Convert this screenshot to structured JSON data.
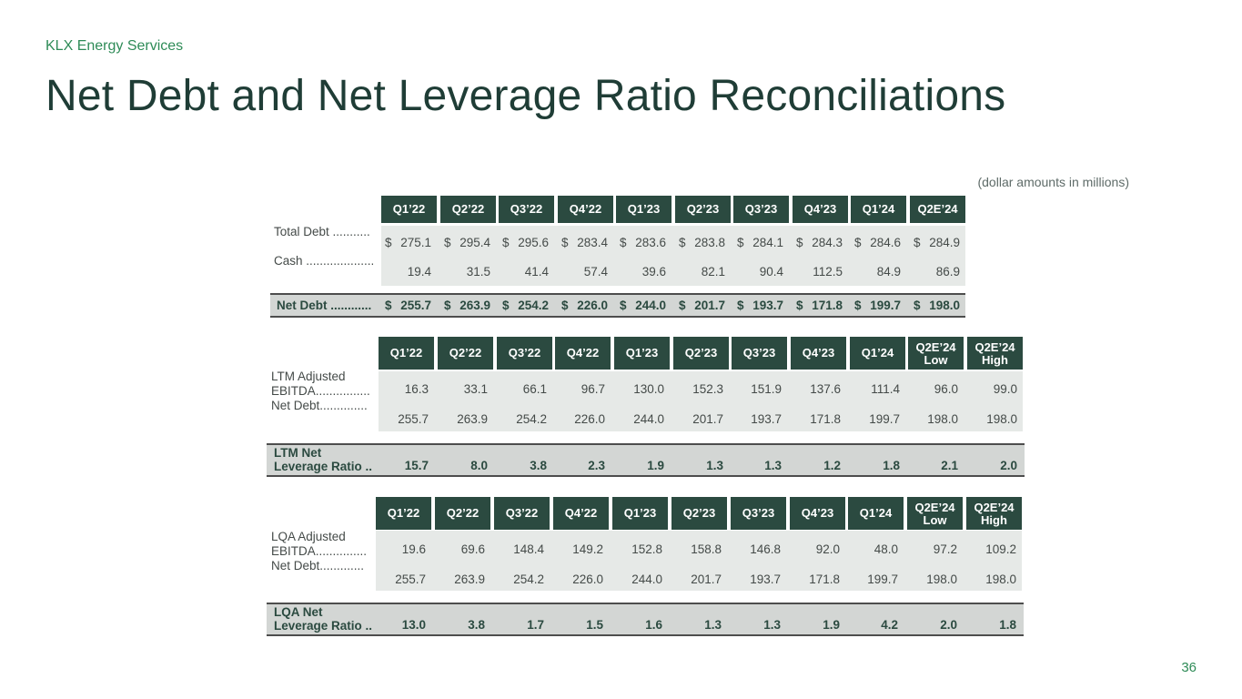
{
  "company": "KLX Energy Services",
  "title": "Net Debt and Net Leverage Ratio Reconciliations",
  "units_note": "(dollar amounts in millions)",
  "page_number": "36",
  "net_debt_table": {
    "columns": [
      "Q1’22",
      "Q2’22",
      "Q3’22",
      "Q4’22",
      "Q1’23",
      "Q2’23",
      "Q3’23",
      "Q4’23",
      "Q1’24",
      "Q2E’24"
    ],
    "rows": [
      {
        "label": "Total Debt ...........",
        "values": [
          "275.1",
          "295.4",
          "295.6",
          "283.4",
          "283.6",
          "283.8",
          "284.1",
          "284.3",
          "284.6",
          "284.9"
        ]
      },
      {
        "label": "Cash ....................",
        "values": [
          "19.4",
          "31.5",
          "41.4",
          "57.4",
          "39.6",
          "82.1",
          "90.4",
          "112.5",
          "84.9",
          "86.9"
        ]
      }
    ],
    "total": {
      "label": "Net Debt ............",
      "values": [
        "255.7",
        "263.9",
        "254.2",
        "226.0",
        "244.0",
        "201.7",
        "193.7",
        "171.8",
        "199.7",
        "198.0"
      ]
    },
    "currency_symbol": "$"
  },
  "ltm_table": {
    "columns": [
      "Q1’22",
      "Q2’22",
      "Q3’22",
      "Q4’22",
      "Q1’23",
      "Q2’23",
      "Q3’23",
      "Q4’23",
      "Q1’24",
      "Q2E’24\nLow",
      "Q2E’24\nHigh"
    ],
    "row_labels": {
      "ebitda_line1": "LTM Adjusted",
      "ebitda_line2": "EBITDA................",
      "net_debt": "Net Debt.............."
    },
    "rows": [
      {
        "values": [
          "16.3",
          "33.1",
          "66.1",
          "96.7",
          "130.0",
          "152.3",
          "151.9",
          "137.6",
          "111.4",
          "96.0",
          "99.0"
        ]
      },
      {
        "values": [
          "255.7",
          "263.9",
          "254.2",
          "226.0",
          "244.0",
          "201.7",
          "193.7",
          "171.8",
          "199.7",
          "198.0",
          "198.0"
        ]
      }
    ],
    "total": {
      "label_line1": "LTM Net",
      "label_line2": "Leverage Ratio ..",
      "values": [
        "15.7",
        "8.0",
        "3.8",
        "2.3",
        "1.9",
        "1.3",
        "1.3",
        "1.2",
        "1.8",
        "2.1",
        "2.0"
      ]
    }
  },
  "lqa_table": {
    "columns": [
      "Q1’22",
      "Q2’22",
      "Q3’22",
      "Q4’22",
      "Q1’23",
      "Q2’23",
      "Q3’23",
      "Q4’23",
      "Q1’24",
      "Q2E’24\nLow",
      "Q2E’24\nHigh"
    ],
    "row_labels": {
      "ebitda_line1": "LQA Adjusted",
      "ebitda_line2": "EBITDA...............",
      "net_debt": "Net Debt............."
    },
    "rows": [
      {
        "values": [
          "19.6",
          "69.6",
          "148.4",
          "149.2",
          "152.8",
          "158.8",
          "146.8",
          "92.0",
          "48.0",
          "97.2",
          "109.2"
        ]
      },
      {
        "values": [
          "255.7",
          "263.9",
          "254.2",
          "226.0",
          "244.0",
          "201.7",
          "193.7",
          "171.8",
          "199.7",
          "198.0",
          "198.0"
        ]
      }
    ],
    "total": {
      "label_line1": "LQA Net",
      "label_line2": "Leverage Ratio ..",
      "values": [
        "13.0",
        "3.8",
        "1.7",
        "1.5",
        "1.6",
        "1.3",
        "1.3",
        "1.9",
        "4.2",
        "2.0",
        "1.8"
      ]
    }
  }
}
